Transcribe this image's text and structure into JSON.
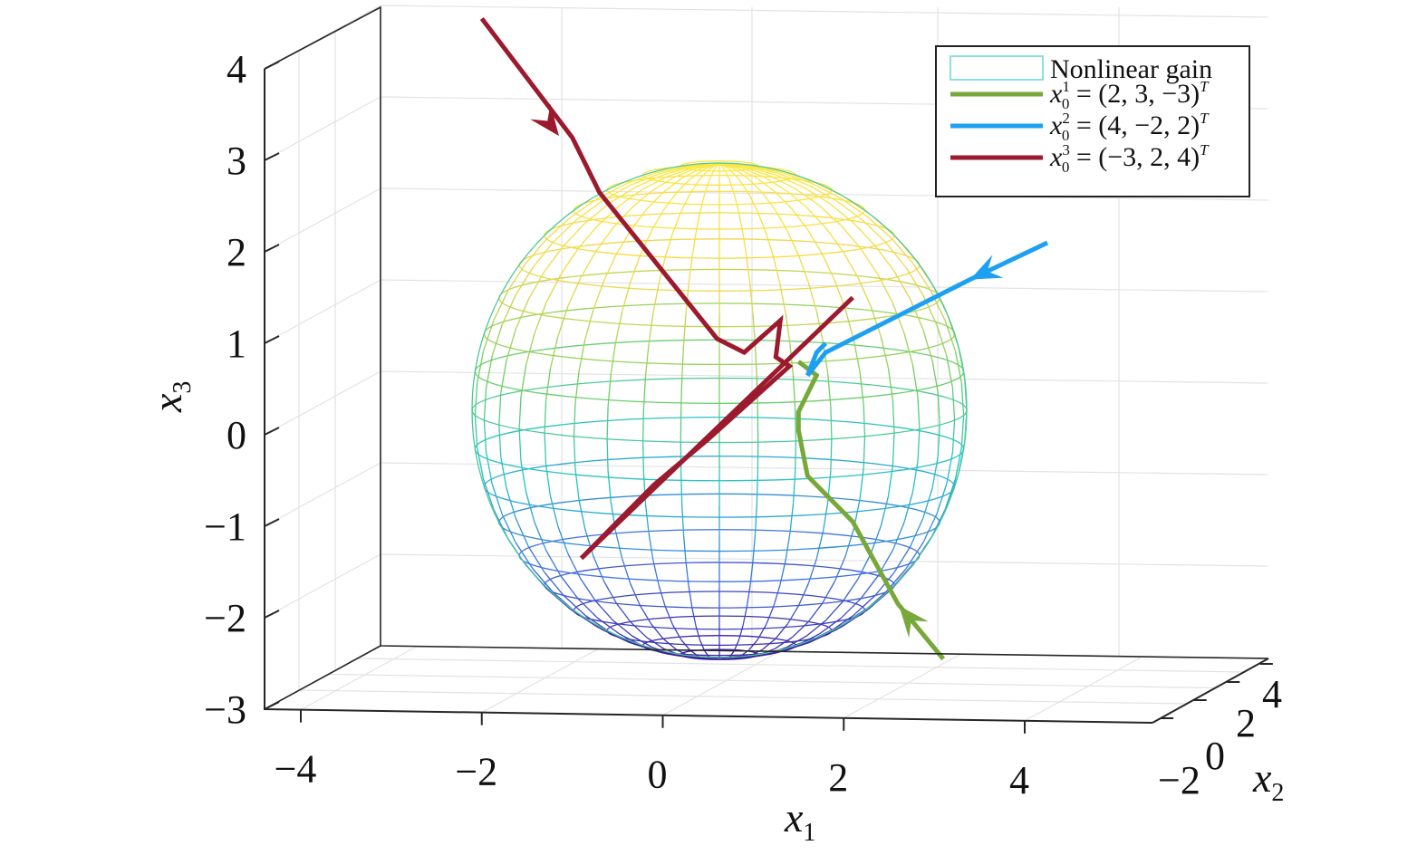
{
  "chart_data": {
    "type": "line",
    "title": "",
    "xlabel": "x",
    "xlabel_sub": "1",
    "ylabel": "x",
    "ylabel_sub": "2",
    "zlabel": "x",
    "zlabel_sub": "3",
    "xlim": [
      -4.5,
      5
    ],
    "ylim": [
      -2.5,
      4.5
    ],
    "zlim": [
      -3,
      4
    ],
    "x_ticks": [
      "−4",
      "−2",
      "0",
      "2",
      "4"
    ],
    "x_tick_values": [
      -4,
      -2,
      0,
      2,
      4
    ],
    "y_ticks": [
      "−2",
      "0",
      "2",
      "4"
    ],
    "y_tick_values": [
      -2,
      0,
      2,
      4
    ],
    "z_ticks": [
      "4",
      "3",
      "2",
      "1",
      "0",
      "−1",
      "−2",
      "−3"
    ],
    "z_tick_values": [
      4,
      3,
      2,
      1,
      0,
      -1,
      -2,
      -3
    ],
    "grid": true,
    "legend_position": "top-right",
    "surface": {
      "name": "Nonlinear gain",
      "shape": "sphere",
      "center": [
        0.6,
        1.0,
        0.4
      ],
      "radius": 2.7,
      "colormap": [
        "#3a1b9e",
        "#3f6fe0",
        "#22c2c9",
        "#73cf62",
        "#f2d84a",
        "#fbe742"
      ]
    },
    "series": [
      {
        "name_parts": [
          "x",
          "1",
          "0",
          " = (2, 3, −3)",
          "T"
        ],
        "color": "#76a83a",
        "points": [
          [
            3.1,
            -2.5
          ],
          [
            2.6,
            -1.9
          ],
          [
            2.1,
            -1.0
          ],
          [
            1.6,
            -0.5
          ],
          [
            1.5,
            0.0
          ],
          [
            1.5,
            0.2
          ],
          [
            1.7,
            0.6
          ],
          [
            1.5,
            0.75
          ]
        ],
        "arrow_at": [
          2.72,
          -2.05
        ],
        "arrow_dir": "toward_start_tail"
      },
      {
        "name_parts": [
          "x",
          "2",
          "0",
          " = (4, −2, 2)",
          "T"
        ],
        "color": "#1ea0f0",
        "points": [
          [
            4.25,
            2.05
          ],
          [
            3.4,
            1.65
          ],
          [
            2.7,
            1.3
          ],
          [
            1.8,
            0.85
          ],
          [
            1.6,
            0.6
          ],
          [
            1.7,
            0.85
          ],
          [
            1.8,
            0.95
          ]
        ],
        "arrow_at": [
          3.55,
          1.72
        ],
        "arrow_dir": "toward_start_tail"
      },
      {
        "name_parts": [
          "x",
          "3",
          "0",
          " = (−3, 2, 4)",
          "T"
        ],
        "color": "#9b1a2e",
        "points": [
          [
            -2.0,
            4.5
          ],
          [
            -1.0,
            3.2
          ],
          [
            -0.7,
            2.6
          ],
          [
            0.6,
            1.0
          ],
          [
            0.9,
            0.85
          ],
          [
            1.3,
            1.2
          ],
          [
            1.25,
            0.8
          ],
          [
            1.4,
            0.7
          ],
          [
            0.5,
            -0.1
          ],
          [
            -0.1,
            -0.6
          ],
          [
            -0.9,
            -1.4
          ],
          [
            2.1,
            1.45
          ]
        ],
        "arrow_at": [
          -1.25,
          3.35
        ],
        "arrow_dir": "toward_start_tail"
      }
    ]
  }
}
